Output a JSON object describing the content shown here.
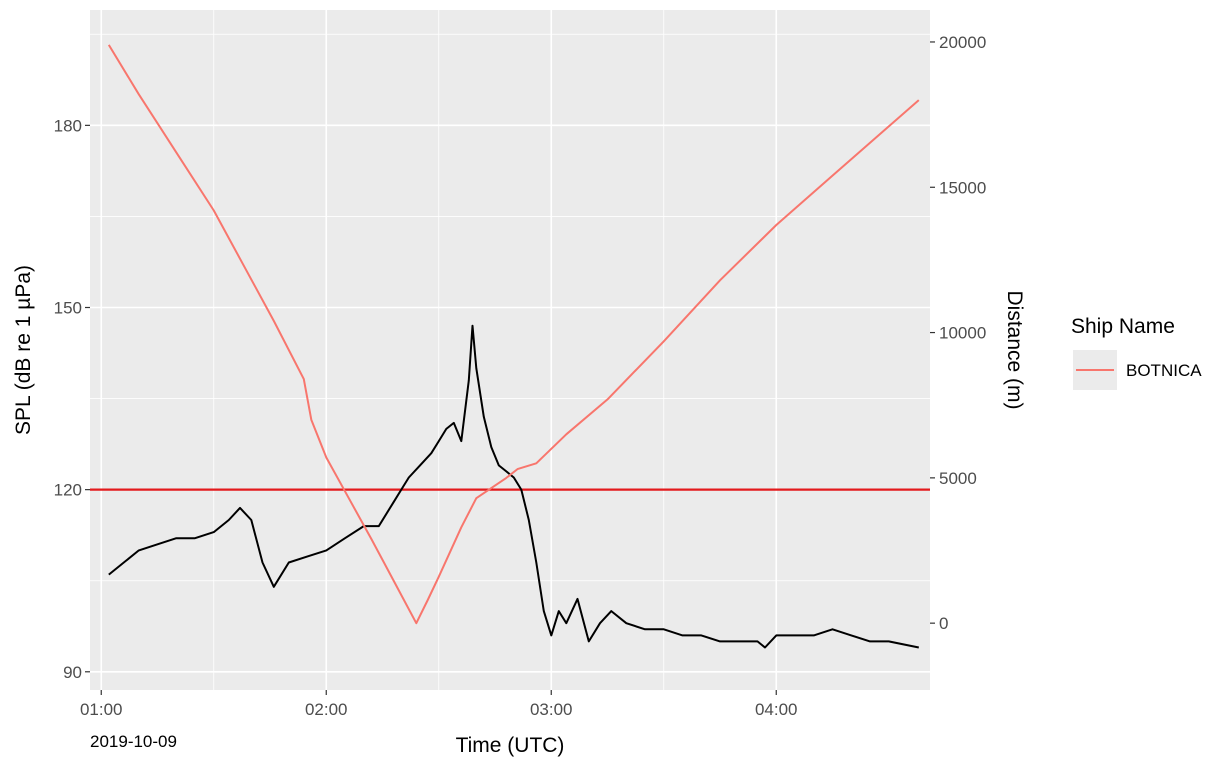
{
  "chart_data": {
    "type": "line",
    "title": "",
    "xlabel": "Time (UTC)",
    "ylabel_left": "SPL (dB re 1 µPa)",
    "ylabel_right": "Distance (m)",
    "date_label": "2019-10-09",
    "x_ticks": [
      "01:00",
      "02:00",
      "03:00",
      "04:00"
    ],
    "x_range": [
      "00:57",
      "04:41"
    ],
    "y_left_ticks": [
      "90",
      "120",
      "150",
      "180"
    ],
    "y_left_range": [
      87,
      199
    ],
    "y_right_ticks": [
      "0",
      "5000",
      "10000",
      "15000",
      "20000"
    ],
    "y_right_range": [
      -2300,
      21100
    ],
    "grid": true,
    "threshold": {
      "value": 120,
      "color": "#e31a1c"
    },
    "legend": {
      "title": "Ship Name",
      "position": "right",
      "entries": [
        {
          "label": "BOTNICA",
          "color": "#f8766d"
        }
      ]
    },
    "series": [
      {
        "name": "BOTNICA",
        "axis": "right",
        "color": "#f8766d",
        "x": [
          "01:02",
          "01:10",
          "01:20",
          "01:30",
          "01:38",
          "01:46",
          "01:54",
          "01:56",
          "02:00",
          "02:06",
          "02:12",
          "02:18",
          "02:24",
          "02:27",
          "02:30",
          "02:36",
          "02:40",
          "02:48",
          "02:51",
          "02:56",
          "03:04",
          "03:15",
          "03:30",
          "03:45",
          "04:00",
          "04:15",
          "04:38"
        ],
        "y": [
          19900,
          18200,
          16200,
          14200,
          12300,
          10400,
          8400,
          7000,
          5700,
          4300,
          2900,
          1450,
          0,
          780,
          1600,
          3300,
          4300,
          5000,
          5300,
          5500,
          6500,
          7700,
          9700,
          11800,
          13700,
          15400,
          18000
        ]
      },
      {
        "name": "SPL",
        "axis": "left",
        "color": "#000000",
        "x": [
          "01:02",
          "01:06",
          "01:10",
          "01:15",
          "01:20",
          "01:25",
          "01:30",
          "01:34",
          "01:37",
          "01:40",
          "01:43",
          "01:46",
          "01:50",
          "01:55",
          "02:00",
          "02:05",
          "02:10",
          "02:14",
          "02:18",
          "02:20",
          "02:22",
          "02:25",
          "02:28",
          "02:30",
          "02:32",
          "02:34",
          "02:36",
          "02:38",
          "02:39",
          "02:40",
          "02:42",
          "02:44",
          "02:46",
          "02:48",
          "02:50",
          "02:52",
          "02:54",
          "02:56",
          "02:58",
          "03:00",
          "03:02",
          "03:04",
          "03:07",
          "03:10",
          "03:13",
          "03:16",
          "03:20",
          "03:25",
          "03:30",
          "03:35",
          "03:40",
          "03:45",
          "03:50",
          "03:55",
          "03:57",
          "04:00",
          "04:05",
          "04:10",
          "04:15",
          "04:20",
          "04:25",
          "04:30",
          "04:38"
        ],
        "y": [
          106,
          108,
          110,
          111,
          112,
          112,
          113,
          115,
          117,
          115,
          108,
          104,
          108,
          109,
          110,
          112,
          114,
          114,
          118,
          120,
          122,
          124,
          126,
          128,
          130,
          131,
          128,
          138,
          147,
          140,
          132,
          127,
          124,
          123,
          122,
          120,
          115,
          108,
          100,
          96,
          100,
          98,
          102,
          95,
          98,
          100,
          98,
          97,
          97,
          96,
          96,
          95,
          95,
          95,
          94,
          96,
          96,
          96,
          97,
          96,
          95,
          95,
          94
        ]
      }
    ]
  }
}
